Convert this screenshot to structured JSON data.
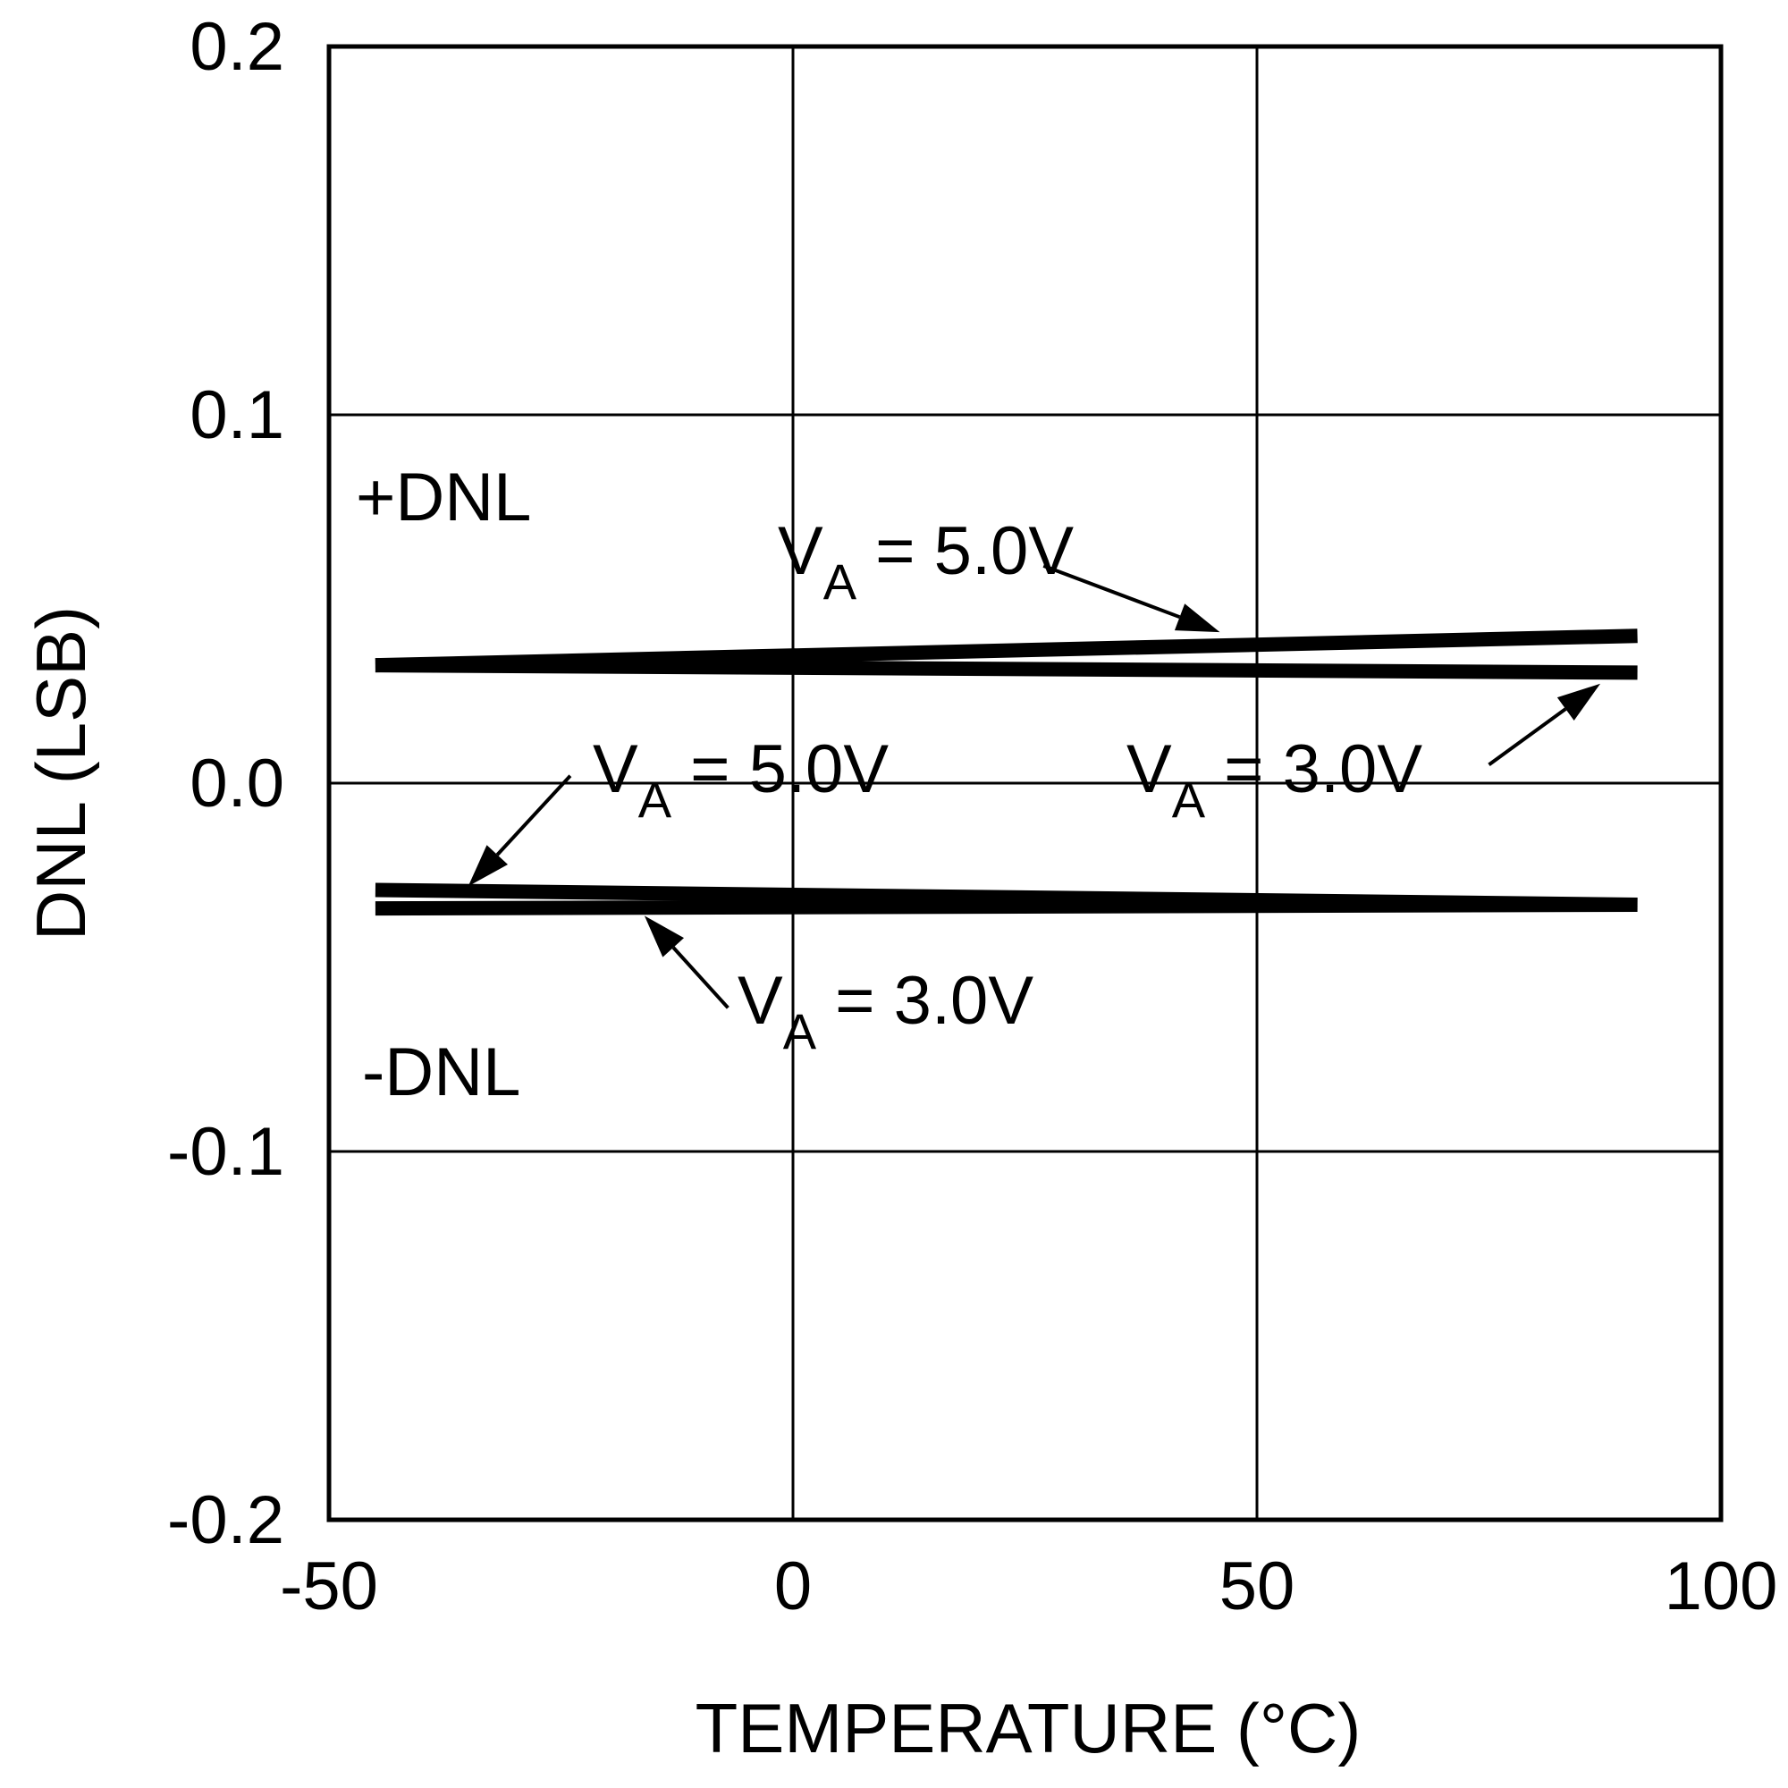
{
  "chart_data": {
    "type": "line",
    "title": "",
    "xlabel": "TEMPERATURE (°C)",
    "ylabel": "DNL (LSB)",
    "xlim": [
      -50,
      100
    ],
    "ylim": [
      -0.2,
      0.2
    ],
    "xticks": [
      -50,
      0,
      50,
      100
    ],
    "xtick_labels": [
      "-50",
      "0",
      "50",
      "100"
    ],
    "yticks": [
      0.2,
      0.1,
      0.0,
      -0.1,
      -0.2
    ],
    "ytick_labels": [
      "0.2",
      "0.1",
      "0.0",
      "-0.1",
      "-0.2"
    ],
    "grid": true,
    "series": [
      {
        "name": "+DNL, VA = 5.0V",
        "x": [
          -45,
          91
        ],
        "y": [
          0.032,
          0.04
        ]
      },
      {
        "name": "+DNL, VA = 3.0V",
        "x": [
          -45,
          91
        ],
        "y": [
          0.032,
          0.03
        ]
      },
      {
        "name": "-DNL, VA = 5.0V",
        "x": [
          -45,
          91
        ],
        "y": [
          -0.029,
          -0.033
        ]
      },
      {
        "name": "-DNL, VA = 3.0V",
        "x": [
          -45,
          91
        ],
        "y": [
          -0.034,
          -0.033
        ]
      }
    ],
    "annotations": {
      "plus_dnl": "+DNL",
      "minus_dnl": "-DNL",
      "v_symbol": "V",
      "v_subscript": "A",
      "eq_5v": " = 5.0V",
      "eq_3v": " = 3.0V"
    }
  },
  "colors": {
    "line": "#000000",
    "background": "#ffffff"
  }
}
